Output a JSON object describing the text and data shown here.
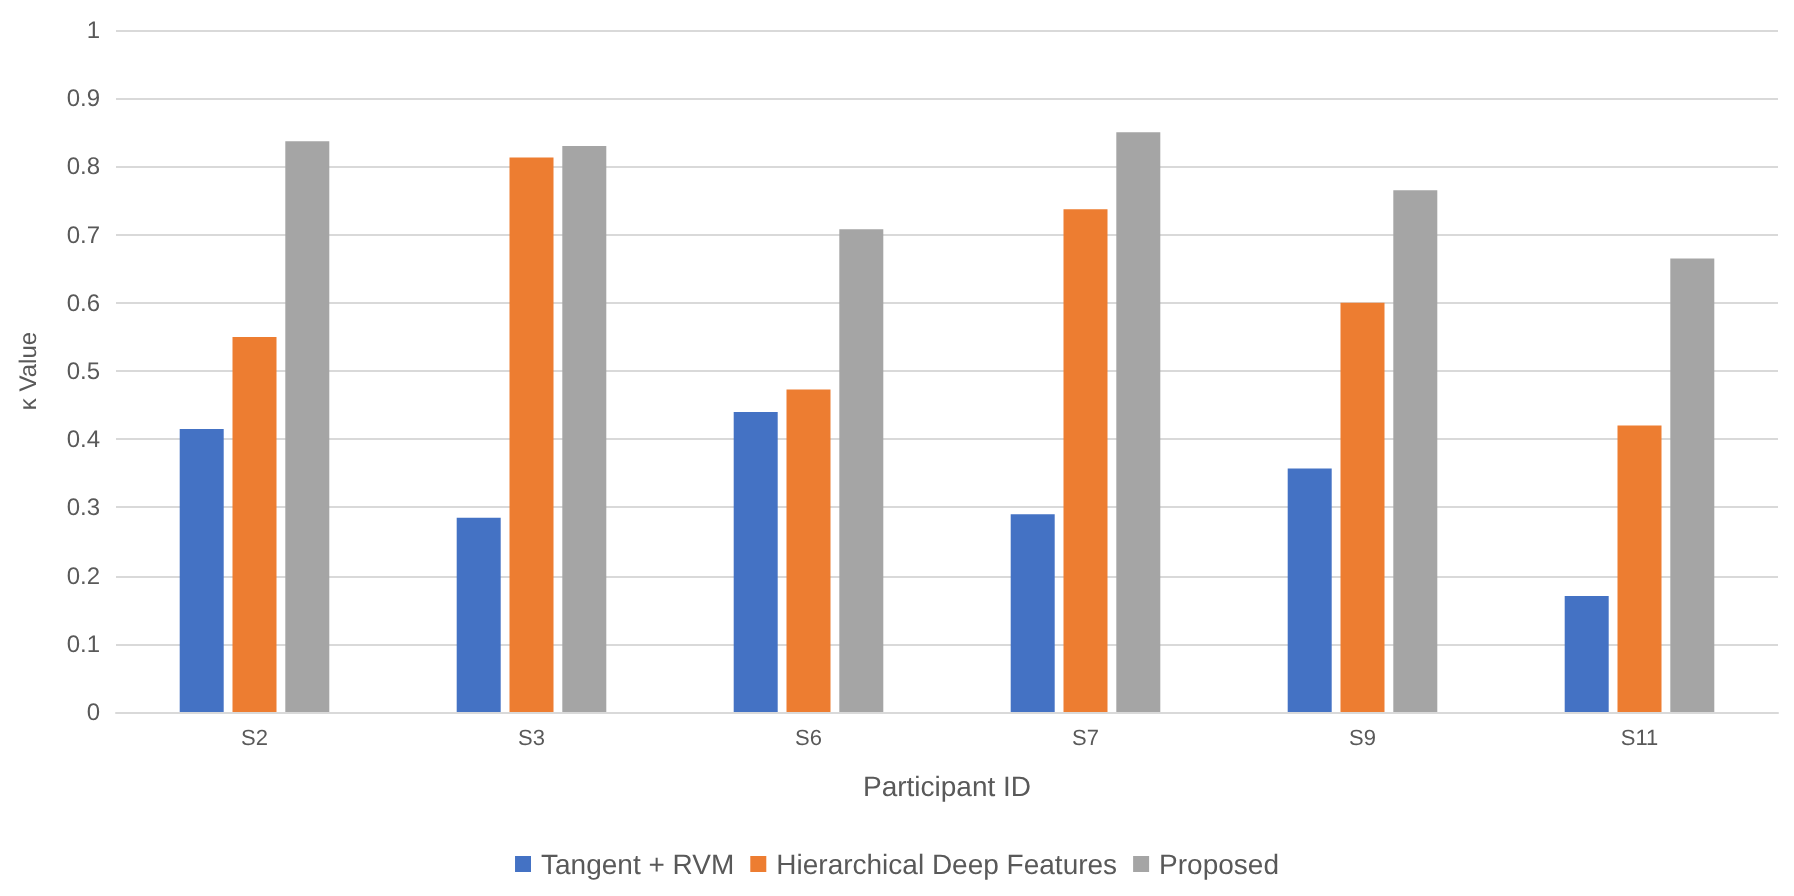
{
  "chart_data": {
    "type": "bar",
    "xlabel": "Participant ID",
    "ylabel": "κ Value",
    "categories": [
      "S2",
      "S3",
      "S6",
      "S7",
      "S9",
      "S11"
    ],
    "series": [
      {
        "name": "Tangent + RVM",
        "color": "#4472c4",
        "values": [
          0.415,
          0.285,
          0.44,
          0.29,
          0.357,
          0.17
        ]
      },
      {
        "name": "Hierarchical Deep Features",
        "color": "#ed7d31",
        "values": [
          0.55,
          0.813,
          0.473,
          0.737,
          0.6,
          0.42
        ]
      },
      {
        "name": "Proposed",
        "color": "#a5a5a5",
        "values": [
          0.837,
          0.83,
          0.708,
          0.85,
          0.765,
          0.665
        ]
      }
    ],
    "ylim": [
      0,
      1
    ],
    "yticks": [
      0,
      0.1,
      0.2,
      0.3,
      0.4,
      0.5,
      0.6,
      0.7,
      0.8,
      0.9,
      1
    ],
    "grid": "y",
    "legend": "bottom"
  }
}
